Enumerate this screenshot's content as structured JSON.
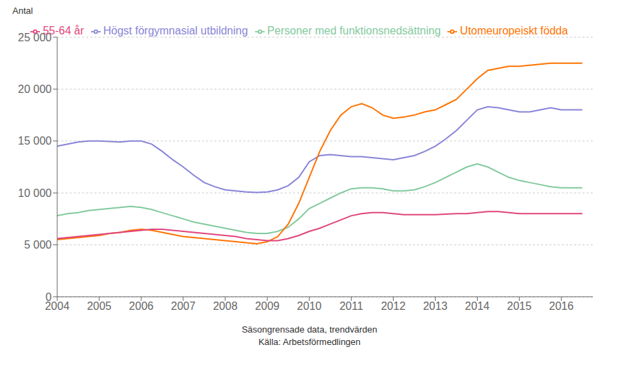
{
  "chart_data": {
    "type": "line",
    "y_label": "Antal",
    "x_label": "Säsongrensade data, trendvärden",
    "annotations": [
      "Källa: Arbetsförmedlingen"
    ],
    "x": [
      2004,
      2004.25,
      2004.5,
      2004.75,
      2005,
      2005.25,
      2005.5,
      2005.75,
      2006,
      2006.25,
      2006.5,
      2006.75,
      2007,
      2007.25,
      2007.5,
      2007.75,
      2008,
      2008.25,
      2008.5,
      2008.75,
      2009,
      2009.25,
      2009.5,
      2009.75,
      2010,
      2010.25,
      2010.5,
      2010.75,
      2011,
      2011.25,
      2011.5,
      2011.75,
      2012,
      2012.25,
      2012.5,
      2012.75,
      2013,
      2013.25,
      2013.5,
      2013.75,
      2014,
      2014.25,
      2014.5,
      2014.75,
      2015,
      2015.25,
      2015.5,
      2015.75,
      2016,
      2016.5
    ],
    "series": [
      {
        "name": "Högst förgymnasial utbildning",
        "color": "#8884d8",
        "values": [
          14500,
          14700,
          14900,
          15000,
          15000,
          14950,
          14900,
          15000,
          15000,
          14700,
          14000,
          13200,
          12500,
          11700,
          11000,
          10600,
          10300,
          10200,
          10100,
          10050,
          10100,
          10300,
          10700,
          11500,
          13000,
          13600,
          13700,
          13600,
          13500,
          13500,
          13400,
          13300,
          13200,
          13400,
          13600,
          14000,
          14500,
          15200,
          16000,
          17000,
          18000,
          18300,
          18200,
          18000,
          17800,
          17800,
          18000,
          18200,
          18000,
          18000
        ]
      },
      {
        "name": "Personer med funktionsnedsättning",
        "color": "#82ca9d",
        "values": [
          7800,
          8000,
          8100,
          8300,
          8400,
          8500,
          8600,
          8700,
          8600,
          8400,
          8100,
          7800,
          7500,
          7200,
          7000,
          6800,
          6600,
          6400,
          6200,
          6100,
          6100,
          6300,
          6700,
          7500,
          8500,
          9000,
          9500,
          10000,
          10400,
          10500,
          10500,
          10400,
          10200,
          10200,
          10300,
          10600,
          11000,
          11500,
          12000,
          12500,
          12800,
          12500,
          12000,
          11500,
          11200,
          11000,
          10800,
          10600,
          10500,
          10500
        ]
      },
      {
        "name": "Utomeuropeiskt födda",
        "color": "#ff7300",
        "values": [
          5500,
          5600,
          5700,
          5800,
          5900,
          6100,
          6200,
          6400,
          6500,
          6400,
          6200,
          6000,
          5800,
          5700,
          5600,
          5500,
          5400,
          5300,
          5200,
          5100,
          5300,
          5800,
          7000,
          9000,
          11500,
          14000,
          16000,
          17500,
          18300,
          18600,
          18200,
          17500,
          17200,
          17300,
          17500,
          17800,
          18000,
          18500,
          19000,
          20000,
          21000,
          21800,
          22000,
          22200,
          22200,
          22300,
          22400,
          22500,
          22500,
          22500
        ]
      },
      {
        "name": "55-64 år",
        "color": "#e0457b",
        "values": [
          5600,
          5700,
          5800,
          5900,
          6000,
          6100,
          6200,
          6300,
          6400,
          6500,
          6500,
          6400,
          6300,
          6200,
          6100,
          6000,
          5900,
          5800,
          5600,
          5500,
          5400,
          5400,
          5600,
          5900,
          6300,
          6600,
          7000,
          7400,
          7800,
          8000,
          8100,
          8100,
          8000,
          7900,
          7900,
          7900,
          7900,
          7950,
          8000,
          8000,
          8100,
          8200,
          8200,
          8100,
          8000,
          8000,
          8000,
          8000,
          8000,
          8000
        ]
      }
    ],
    "xlim": [
      2004,
      2016.75
    ],
    "xticks": [
      2004,
      2005,
      2006,
      2007,
      2008,
      2009,
      2010,
      2011,
      2012,
      2013,
      2014,
      2015,
      2016
    ],
    "ylim": [
      0,
      25000
    ],
    "yticks": [
      0,
      {
        "value": 5000,
        "label": "5 000"
      },
      {
        "value": 10000,
        "label": "10 000"
      },
      {
        "value": 15000,
        "label": "15 000"
      },
      {
        "value": 20000,
        "label": "20 000"
      },
      {
        "value": 25000,
        "label": "25 000"
      }
    ],
    "grid": "y",
    "legend": "top"
  }
}
